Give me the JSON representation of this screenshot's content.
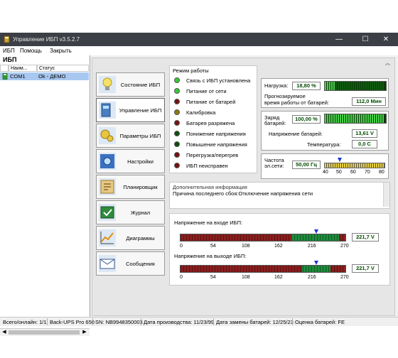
{
  "window": {
    "title": "Управление ИБП  v3.5.2.7",
    "controls": [
      "—",
      "☐",
      "✕"
    ]
  },
  "menu": [
    "ИБП",
    "Помощь",
    "Закрыть"
  ],
  "left_panel": {
    "heading": "ИБП",
    "columns": [
      "Наим...",
      "Статус"
    ],
    "rows": [
      {
        "name": "COM1",
        "status": "Ok - ДЕМО"
      }
    ]
  },
  "nav": [
    {
      "label": "Состояние ИБП",
      "icon": "bulb-icon"
    },
    {
      "label": "Управление ИБП",
      "icon": "ups-control-icon"
    },
    {
      "label": "Параметры ИБП",
      "icon": "gears-icon"
    },
    {
      "label": "Настройки",
      "icon": "settings-icon"
    },
    {
      "label": "Планировщик",
      "icon": "scheduler-icon"
    },
    {
      "label": "Журнал",
      "icon": "journal-icon"
    },
    {
      "label": "Диаграммы",
      "icon": "diagram-icon"
    },
    {
      "label": "Сообщения",
      "icon": "envelope-icon"
    }
  ],
  "modes": {
    "title": "Режим работы",
    "items": [
      {
        "label": "Связь с ИБП установлена",
        "color": "#33cc33"
      },
      {
        "label": "Питание от сети",
        "color": "#33cc33"
      },
      {
        "label": "Питание от батарей",
        "color": "#7a1010"
      },
      {
        "label": "Калибровка",
        "color": "#8a7a10"
      },
      {
        "label": "Батарея разряжена",
        "color": "#7a1010"
      },
      {
        "label": "Понижение напряжения",
        "color": "#0d4d0d"
      },
      {
        "label": "Повышение напряжения",
        "color": "#0d4d0d"
      },
      {
        "label": "Перегрузка/перегрев",
        "color": "#7a1010"
      },
      {
        "label": "ИБП неисправен",
        "color": "#7a1010"
      }
    ]
  },
  "load": {
    "label": "Нагрузка:",
    "value": "18,80 %",
    "fill_percent": 18.8,
    "runtime_label_1": "Прогнозируемое",
    "runtime_label_2": "время работы от батарей:",
    "runtime_value": "112,0 Мин"
  },
  "battery": {
    "label_1": "Заряд",
    "label_2": "батарей:",
    "value": "100,00 %",
    "fill_percent": 100,
    "voltage_label": "Напряжение батарей:",
    "voltage_value": "13,61 V",
    "temp_label": "Температура:",
    "temp_value": "0,0 C"
  },
  "frequency": {
    "label_1": "Частота",
    "label_2": "эл.сети:",
    "value": "50,00 Гц",
    "scale": [
      "40",
      "50",
      "60",
      "70",
      "80"
    ],
    "current": 50
  },
  "additional": {
    "title": "Дополнительная информация",
    "text": "Причина последнего сбоя:Отключение напряжения сети"
  },
  "input_voltage": {
    "label": "Напряжение на входе ИБП:",
    "value": "221,7 V",
    "scale": [
      "0",
      "54",
      "108",
      "162",
      "216",
      "270"
    ],
    "current": 221.7,
    "green_range": [
      181,
      260
    ]
  },
  "output_voltage": {
    "label": "Напряжение на выходе ИБП:",
    "value": "221,7 V",
    "scale": [
      "0",
      "54",
      "108",
      "162",
      "216",
      "270"
    ],
    "current": 221.7,
    "green_range": [
      199,
      245
    ]
  },
  "status_bar": [
    "Всего/онлайн: 1/1",
    "Back-UPS Pro 650",
    "SN: NB9948350003",
    "Дата производства: 11/23/99",
    "Дата замены батарей: 12/25/23",
    "Оценка батарей: FE"
  ]
}
